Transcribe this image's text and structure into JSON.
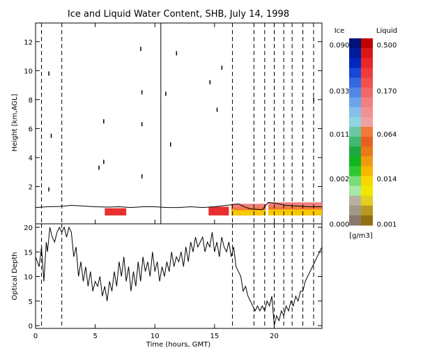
{
  "title": "Ice and Liquid Water Content, SHB, July 14, 1998",
  "colorbar": {
    "ice_label": "Ice",
    "liquid_label": "Liquid",
    "units": "[g/m3]",
    "ice_ticks": [
      "0.090",
      "0.033",
      "0.011",
      "0.002",
      "0.000"
    ],
    "liquid_ticks": [
      "0.500",
      "0.170",
      "0.064",
      "0.014",
      "0.001"
    ],
    "ice_colors": [
      "#00127a",
      "#001c9c",
      "#0028c0",
      "#1848d8",
      "#3468e0",
      "#5088e8",
      "#6aa4ea",
      "#84c0ea",
      "#90d4e0",
      "#6cc8a0",
      "#40b870",
      "#20a840",
      "#10b820",
      "#30c830",
      "#78dc78",
      "#a8e8a8",
      "#b8b0a0",
      "#a09888",
      "#887870"
    ],
    "liquid_colors": [
      "#c00000",
      "#d81818",
      "#e82828",
      "#ee3c3c",
      "#f05050",
      "#f06868",
      "#f08080",
      "#f09090",
      "#f0a0a0",
      "#f07a3c",
      "#e86020",
      "#e87a18",
      "#f09a10",
      "#f8b800",
      "#f8d800",
      "#f0e800",
      "#e0d020",
      "#b89820",
      "#907010"
    ]
  },
  "chart_data": [
    {
      "type": "heatmap",
      "title": "Ice and Liquid Water Content, SHB, July 14, 1998",
      "xlabel": "",
      "ylabel": "Height [km,AGL]",
      "xlim": [
        0,
        24
      ],
      "ylim": [
        0,
        13
      ],
      "yticks": [
        2,
        4,
        6,
        8,
        10,
        12
      ],
      "vertical_solid_lines_hours": [
        10.5
      ],
      "vertical_dashed_lines_hours": [
        0.5,
        2.2,
        16.5,
        18.3,
        19.2,
        20.0,
        20.8,
        21.5,
        22.4,
        23.3
      ],
      "cloud_base_km": [
        [
          0.0,
          0.55
        ],
        [
          1.0,
          0.6
        ],
        [
          2.0,
          0.62
        ],
        [
          3.0,
          0.7
        ],
        [
          4.0,
          0.65
        ],
        [
          5.0,
          0.6
        ],
        [
          6.0,
          0.58
        ],
        [
          7.0,
          0.6
        ],
        [
          8.0,
          0.55
        ],
        [
          9.0,
          0.6
        ],
        [
          10.0,
          0.6
        ],
        [
          11.0,
          0.55
        ],
        [
          12.0,
          0.55
        ],
        [
          13.0,
          0.6
        ],
        [
          14.0,
          0.55
        ],
        [
          15.0,
          0.6
        ],
        [
          16.0,
          0.7
        ],
        [
          17.0,
          0.8
        ],
        [
          17.5,
          0.6
        ],
        [
          18.0,
          0.45
        ],
        [
          19.0,
          0.4
        ],
        [
          19.5,
          0.9
        ],
        [
          20.0,
          0.85
        ],
        [
          21.0,
          0.7
        ],
        [
          22.0,
          0.65
        ],
        [
          23.0,
          0.6
        ],
        [
          24.0,
          0.6
        ]
      ],
      "liquid_patches": [
        {
          "start_hour": 5.8,
          "end_hour": 7.6,
          "bottom_km": 0.0,
          "top_km": 0.5,
          "level": "high"
        },
        {
          "start_hour": 14.5,
          "end_hour": 16.2,
          "bottom_km": 0.0,
          "top_km": 0.6,
          "level": "high"
        },
        {
          "start_hour": 16.4,
          "end_hour": 19.3,
          "bottom_km": 0.0,
          "top_km": 0.8,
          "level": "mixed"
        },
        {
          "start_hour": 19.5,
          "end_hour": 24.0,
          "bottom_km": 0.0,
          "top_km": 0.9,
          "level": "mixed"
        }
      ],
      "ice_specks": [
        {
          "hour": 1.1,
          "km": 9.8
        },
        {
          "hour": 1.3,
          "km": 5.5
        },
        {
          "hour": 1.1,
          "km": 1.8
        },
        {
          "hour": 5.3,
          "km": 3.3
        },
        {
          "hour": 5.7,
          "km": 3.7
        },
        {
          "hour": 5.7,
          "km": 6.5
        },
        {
          "hour": 8.8,
          "km": 11.5
        },
        {
          "hour": 8.9,
          "km": 8.5
        },
        {
          "hour": 8.9,
          "km": 6.3
        },
        {
          "hour": 8.9,
          "km": 2.7
        },
        {
          "hour": 10.9,
          "km": 8.4
        },
        {
          "hour": 11.3,
          "km": 4.9
        },
        {
          "hour": 11.8,
          "km": 11.2
        },
        {
          "hour": 14.6,
          "km": 9.2
        },
        {
          "hour": 15.2,
          "km": 7.3
        },
        {
          "hour": 15.6,
          "km": 10.2
        },
        {
          "hour": 23.3,
          "km": 8.0
        }
      ]
    },
    {
      "type": "line",
      "xlabel": "Time (hours, GMT)",
      "ylabel": "Optical Depth",
      "xlim": [
        0,
        24
      ],
      "ylim": [
        0,
        20
      ],
      "xticks": [
        0,
        5,
        10,
        15,
        20
      ],
      "yticks": [
        0,
        5,
        10,
        15,
        20
      ],
      "series": [
        {
          "x": [
            0.0,
            0.3,
            0.5,
            0.7,
            0.9,
            1.0,
            1.2,
            1.4,
            1.6,
            1.8,
            2.0,
            2.2,
            2.4,
            2.6,
            2.8,
            3.0,
            3.2,
            3.4,
            3.6,
            3.8,
            4.0,
            4.2,
            4.4,
            4.6,
            4.8,
            5.0,
            5.2,
            5.4,
            5.6,
            5.8,
            6.0,
            6.2,
            6.4,
            6.6,
            6.8,
            7.0,
            7.2,
            7.4,
            7.6,
            7.8,
            8.0,
            8.2,
            8.4,
            8.6,
            8.8,
            9.0,
            9.2,
            9.4,
            9.6,
            9.8,
            10.0,
            10.2,
            10.4,
            10.6,
            10.8,
            11.0,
            11.2,
            11.4,
            11.6,
            11.8,
            12.0,
            12.2,
            12.4,
            12.6,
            12.8,
            13.0,
            13.2,
            13.4,
            13.6,
            13.8,
            14.0,
            14.2,
            14.4,
            14.6,
            14.8,
            15.0,
            15.2,
            15.4,
            15.6,
            15.8,
            16.0,
            16.2,
            16.4,
            16.6,
            16.8,
            17.0,
            17.2,
            17.4,
            17.6,
            17.8,
            18.0,
            18.2,
            18.4,
            18.6,
            18.8,
            19.0,
            19.2,
            19.4,
            19.6,
            19.8,
            20.0,
            20.2,
            20.4,
            20.6,
            20.8,
            21.0,
            21.2,
            21.4,
            21.6,
            21.8,
            22.0,
            22.2,
            22.4,
            22.6,
            22.8,
            23.0,
            23.2,
            23.4,
            23.6,
            23.8,
            24.0
          ],
          "y": [
            14,
            12,
            16,
            9,
            17,
            15,
            20,
            18,
            17,
            19,
            20,
            19,
            20,
            18,
            20,
            19,
            14,
            16,
            10,
            13,
            9,
            12,
            8,
            11,
            7,
            9,
            8,
            10,
            6,
            8,
            5,
            9,
            7,
            11,
            8,
            13,
            10,
            14,
            9,
            12,
            7,
            11,
            8,
            13,
            9,
            14,
            11,
            13,
            10,
            15,
            11,
            13,
            9,
            12,
            10,
            13,
            11,
            15,
            12,
            14,
            13,
            15,
            12,
            16,
            13,
            17,
            15,
            18,
            16,
            17,
            18,
            15,
            17,
            16,
            19,
            15,
            17,
            14,
            18,
            16,
            15,
            17,
            14,
            16,
            12,
            11,
            10,
            7,
            8,
            6,
            5,
            4,
            3,
            4,
            3,
            4,
            3,
            5,
            4,
            6,
            0,
            2,
            1,
            3,
            2,
            4,
            3,
            5,
            4,
            6,
            5,
            7,
            7,
            9,
            10,
            11,
            12,
            13,
            14,
            15,
            16
          ]
        }
      ]
    }
  ]
}
